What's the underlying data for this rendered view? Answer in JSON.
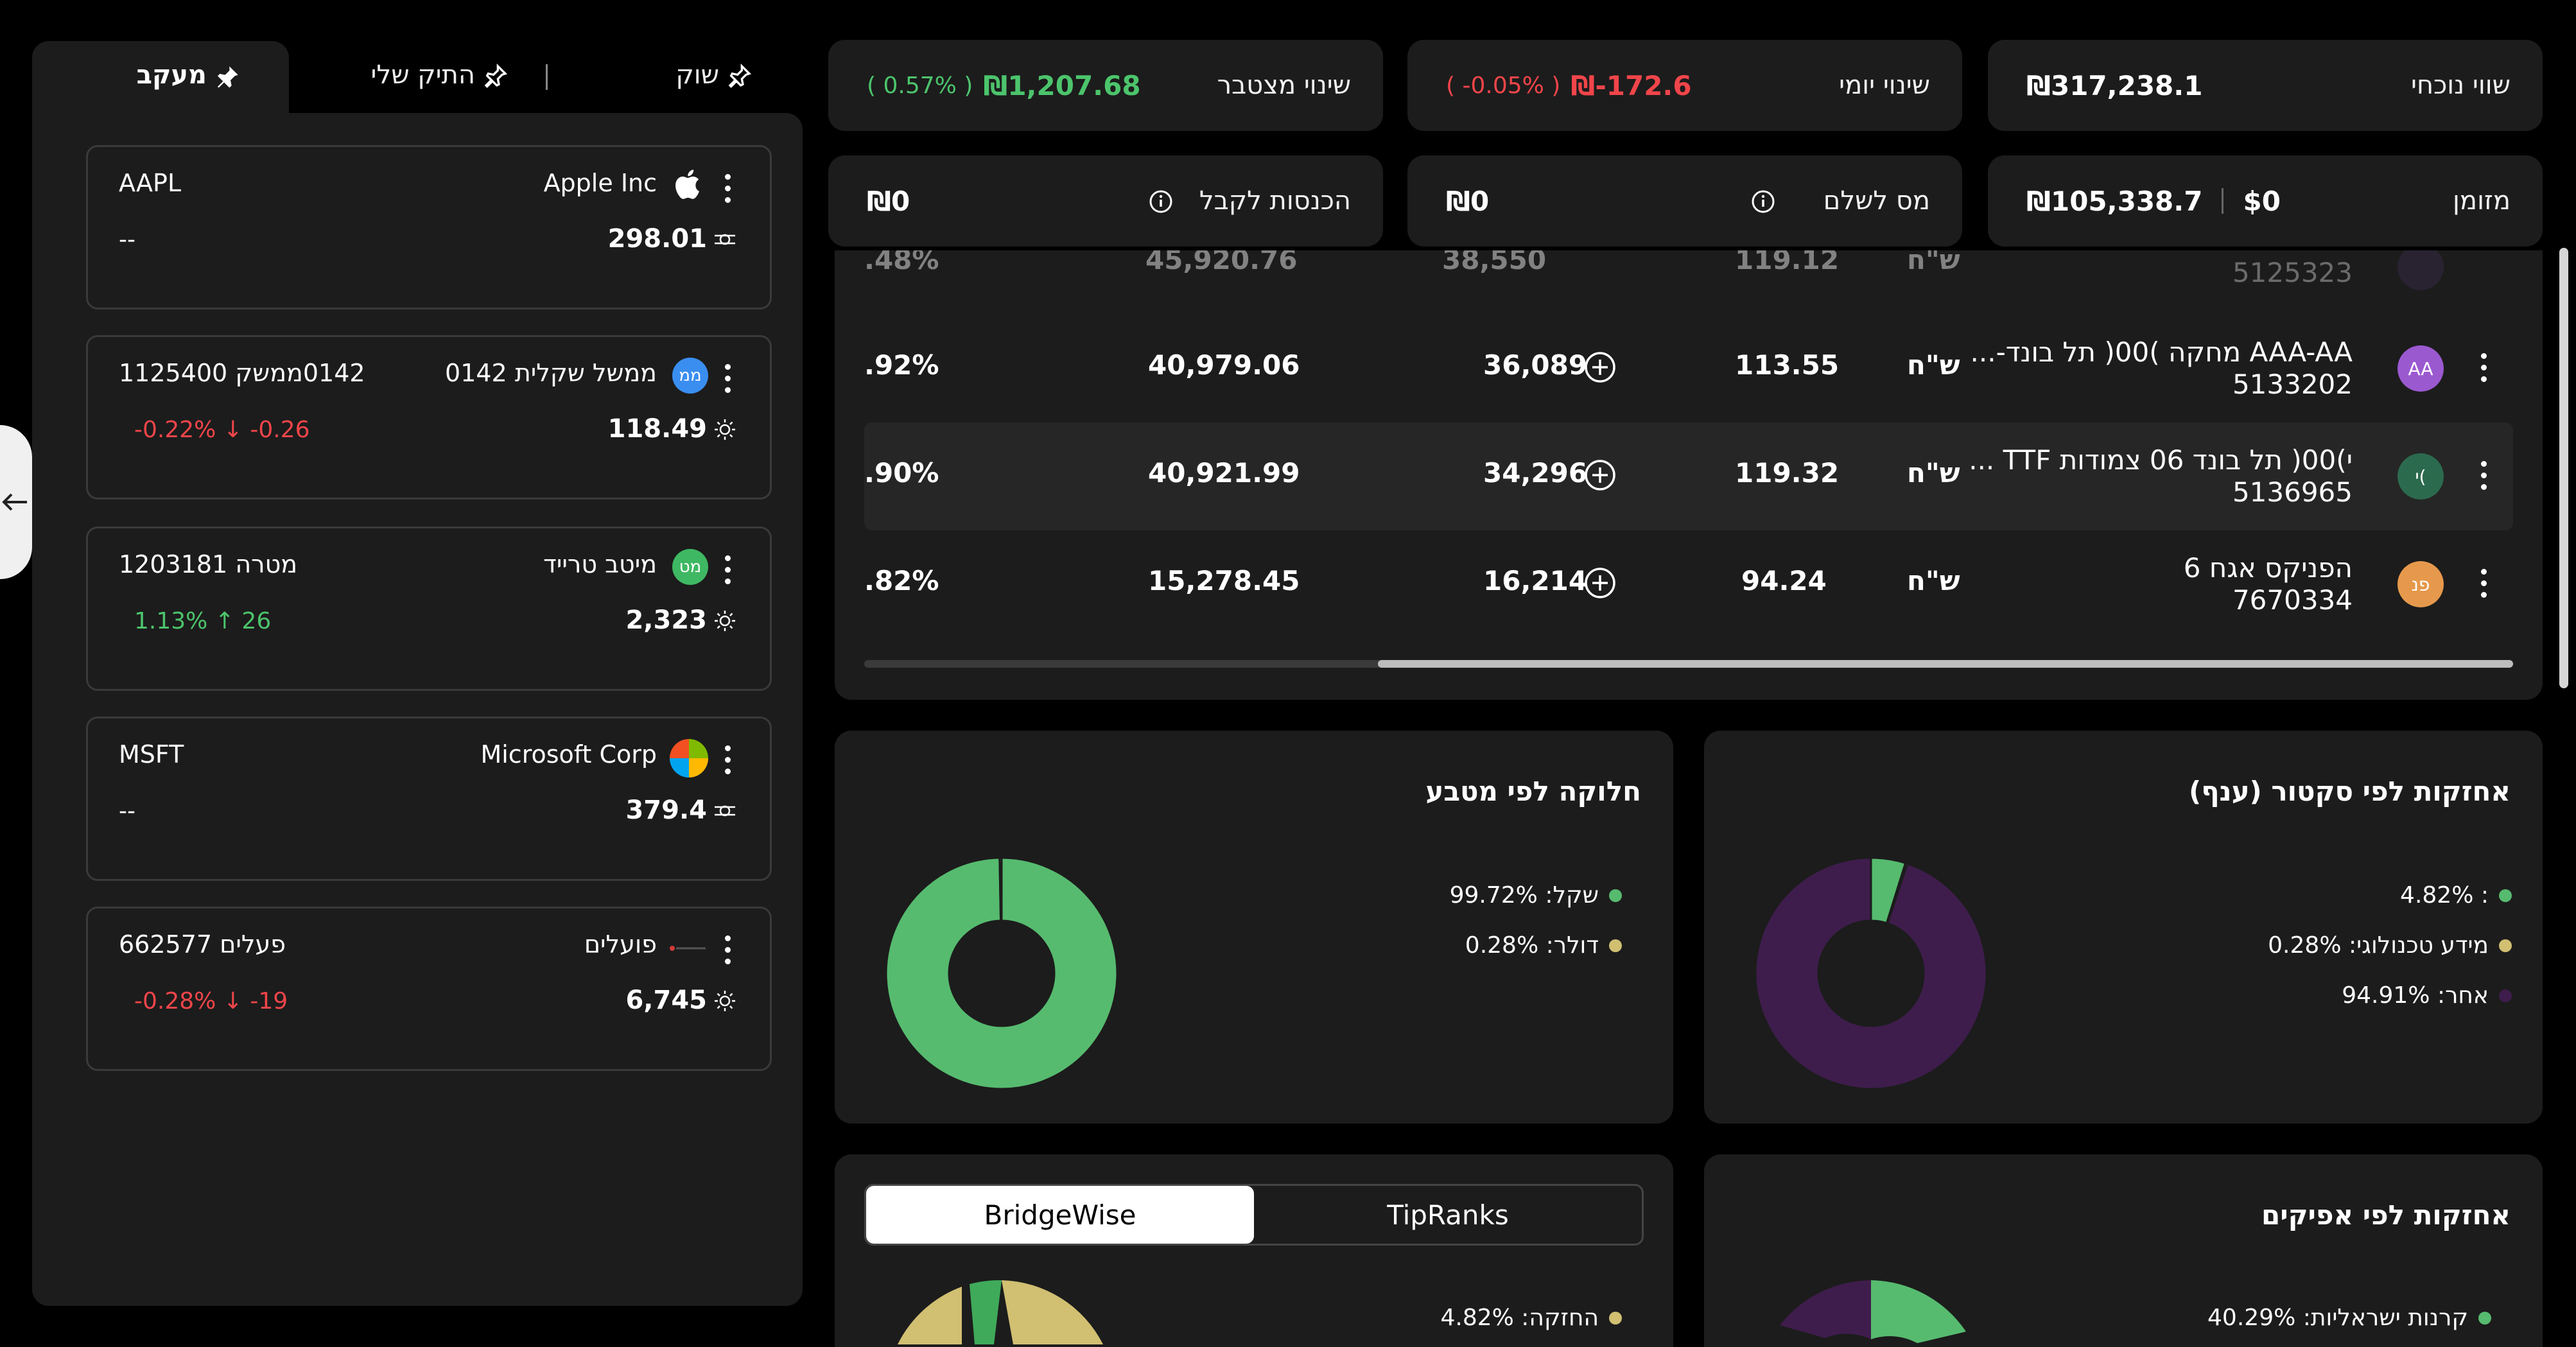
{
  "colors": {
    "green": "#4cc46c",
    "red": "#f0454a",
    "purple": "#3e1d4c",
    "khaki": "#d1bf72",
    "donut_green": "#56bb6f"
  },
  "watchlist_tabs": {
    "tracker": "מעקב",
    "my_portfolio": "התיק שלי",
    "market": "שוק"
  },
  "watchlist": [
    {
      "name": "Apple Inc",
      "symbol": "AAPL",
      "price": "298.01",
      "change": "--",
      "logo": "apple-icon"
    },
    {
      "name": "ממשל שקלית 0142",
      "symbol": "0142ממשק 1125400",
      "price": "118.49",
      "change": "-0.22% ↓ -0.26",
      "logo_text": "ממ"
    },
    {
      "name": "מיטב טרייד",
      "symbol": "מטרה 1203181",
      "price": "2,323",
      "change": "1.13% ↑ 26",
      "logo_text": "מט"
    },
    {
      "name": "Microsoft Corp",
      "symbol": "MSFT",
      "price": "379.4",
      "change": "--",
      "logo": "microsoft-icon"
    },
    {
      "name": "פועלים",
      "symbol": "פעלים 662577",
      "price": "6,745",
      "change": "-0.28% ↓ -19"
    }
  ],
  "summary": {
    "current_value_label": "שווי נוכחי",
    "current_value": "₪317,238.1",
    "daily_change_label": "שינוי יומי",
    "daily_change": "₪-172.6",
    "daily_change_pct": "( -0.05% )",
    "total_change_label": "שינוי מצטבר",
    "total_change": "₪1,207.68",
    "total_change_pct": "( 0.57% )",
    "cash_label": "מזומן",
    "cash_usd": "$0",
    "cash_ils": "₪105,338.7",
    "tax_label": "מס לשלם",
    "tax_value": "₪0",
    "income_label": "הכנסות לקבל",
    "income_value": "₪0"
  },
  "holdings": {
    "partial_row": {
      "id": "5125323",
      "currency": "ש\"ח",
      "price": "119.12",
      "qty": "38,550",
      "value": "45,920.76",
      "pct": ".48%"
    },
    "rows": [
      {
        "name": "AAA-AA מחקה )00( תל בונד-...",
        "id": "5133202",
        "avatar": "AA",
        "currency": "ש\"ח",
        "price": "113.55",
        "qty": "36,089",
        "value": "40,979.06",
        "pct": ".92%"
      },
      {
        "name": "י)00( תל בונד 06 צמודות TTF ...",
        "id": "5136965",
        "avatar": "י(",
        "currency": "ש\"ח",
        "price": "119.32",
        "qty": "34,296",
        "value": "40,921.99",
        "pct": ".90%"
      },
      {
        "name": "הפניקס אגח 6",
        "id": "7670334",
        "avatar": "פנ",
        "currency": "ש\"ח",
        "price": "94.24",
        "qty": "16,214",
        "value": "15,278.45",
        "pct": ".82%"
      }
    ]
  },
  "sector_chart": {
    "title": "אחזקות לפי סקטור (ענף)",
    "chart_data": {
      "type": "pie",
      "categories": [
        "",
        "מידע טכנולוגי",
        "אחר"
      ],
      "values": [
        4.82,
        0.28,
        94.91
      ],
      "legend": [
        ": 4.82%",
        "מידע טכנולוגי: 0.28%",
        "אחר: 94.91%"
      ]
    }
  },
  "currency_chart": {
    "title": "חלוקה לפי מטבע",
    "chart_data": {
      "type": "pie",
      "categories": [
        "שקל",
        "דולר"
      ],
      "values": [
        99.72,
        0.28
      ],
      "legend": [
        "שקל: 99.72%",
        "דולר: 0.28%"
      ]
    }
  },
  "characteristics_chart": {
    "title": "אחזקות לפי אפיקים",
    "legend_first": "קרנות ישראליות: 40.29%",
    "first_value": 40.29
  },
  "ratings_chart": {
    "tab_bridgewise": "BridgeWise",
    "tab_tipranks": "TipRanks",
    "legend_first": "החזקה: 4.82%"
  }
}
